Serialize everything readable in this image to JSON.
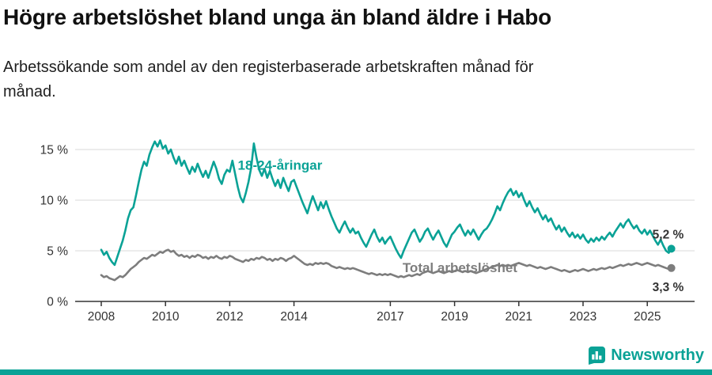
{
  "header": {
    "title": "Högre arbetslöshet bland unga än bland äldre i Habo",
    "subtitle": "Arbetssökande som andel av den registerbaserade arbetskraften månad för månad."
  },
  "branding": {
    "name": "Newsworthy",
    "color": "#0aa296"
  },
  "chart_data": {
    "type": "line",
    "title": "Högre arbetslöshet bland unga än bland äldre i Habo",
    "subtitle": "Arbetssökande som andel av den registerbaserade arbetskraften månad för månad.",
    "xlabel": "",
    "ylabel": "",
    "unit": "%",
    "grid": true,
    "xlim": [
      2008,
      2025.75
    ],
    "ylim": [
      0,
      16.5
    ],
    "x_ticks": [
      2008,
      2010,
      2012,
      2014,
      2017,
      2019,
      2021,
      2023,
      2025
    ],
    "y_ticks": [
      {
        "value": 0,
        "label": "0 %"
      },
      {
        "value": 5,
        "label": "5 %"
      },
      {
        "value": 10,
        "label": "10 %"
      },
      {
        "value": 15,
        "label": "15 %"
      }
    ],
    "series": [
      {
        "name": "18-24-åringar",
        "label": "18-24-åringar",
        "color": "#0aa296",
        "start_year": 2008,
        "frequency": "monthly",
        "label_anchor": {
          "year": 2012.25,
          "value": 13.0
        },
        "end_label": "5,2 %",
        "end_label_offset": [
          -24,
          -13
        ],
        "values": [
          5.1,
          4.6,
          4.9,
          4.3,
          3.9,
          3.6,
          4.4,
          5.2,
          6.0,
          7.0,
          8.2,
          9.0,
          9.3,
          10.5,
          11.8,
          13.0,
          13.8,
          13.4,
          14.5,
          15.2,
          15.8,
          15.3,
          15.9,
          15.1,
          15.4,
          14.6,
          15.0,
          14.2,
          13.6,
          14.3,
          13.4,
          13.9,
          13.2,
          12.6,
          13.3,
          12.8,
          13.6,
          12.9,
          12.3,
          12.9,
          12.2,
          13.0,
          13.8,
          13.1,
          12.1,
          11.6,
          12.5,
          13.0,
          12.8,
          13.9,
          12.6,
          11.3,
          10.3,
          9.8,
          10.7,
          11.8,
          13.2,
          15.6,
          14.2,
          13.0,
          12.4,
          13.1,
          12.2,
          12.9,
          12.1,
          11.4,
          12.0,
          11.2,
          12.2,
          11.5,
          10.9,
          11.8,
          12.0,
          11.3,
          10.6,
          9.9,
          9.3,
          8.7,
          9.6,
          10.4,
          9.7,
          9.0,
          9.8,
          9.2,
          9.9,
          9.1,
          8.4,
          7.8,
          7.2,
          6.8,
          7.4,
          7.9,
          7.3,
          6.8,
          7.2,
          6.7,
          6.9,
          6.3,
          5.8,
          5.4,
          6.0,
          6.6,
          7.1,
          6.4,
          5.9,
          6.3,
          5.7,
          6.1,
          6.4,
          5.8,
          5.2,
          4.7,
          4.3,
          5.0,
          5.6,
          6.2,
          6.8,
          7.1,
          6.5,
          5.9,
          6.3,
          6.9,
          7.2,
          6.6,
          6.1,
          6.6,
          7.0,
          6.4,
          5.8,
          5.4,
          6.0,
          6.6,
          6.9,
          7.3,
          7.6,
          7.0,
          6.5,
          7.0,
          6.6,
          7.1,
          6.6,
          6.1,
          6.6,
          7.0,
          7.2,
          7.6,
          8.1,
          8.7,
          9.4,
          9.0,
          9.7,
          10.3,
          10.8,
          11.1,
          10.5,
          10.9,
          10.3,
          10.7,
          10.0,
          9.4,
          9.9,
          9.3,
          8.8,
          9.2,
          8.6,
          8.1,
          8.5,
          7.9,
          8.2,
          7.6,
          7.1,
          7.5,
          6.9,
          7.3,
          6.8,
          6.4,
          6.8,
          6.3,
          6.6,
          6.2,
          6.6,
          6.1,
          5.8,
          6.2,
          5.9,
          6.3,
          6.0,
          6.4,
          6.1,
          6.5,
          6.8,
          6.4,
          6.9,
          7.3,
          7.7,
          7.3,
          7.8,
          8.1,
          7.6,
          7.2,
          7.5,
          7.0,
          6.7,
          7.1,
          6.6,
          7.0,
          6.5,
          6.0,
          5.6,
          6.1,
          5.5,
          5.0,
          4.8,
          5.2
        ]
      },
      {
        "name": "Total arbetslöshet",
        "label": "Total arbetslöshet",
        "color": "#7d7d7d",
        "start_year": 2008,
        "frequency": "monthly",
        "label_anchor": {
          "year": 2017.38,
          "value": 2.9
        },
        "end_label": "3,3 %",
        "end_label_offset": [
          -24,
          29
        ],
        "values": [
          2.6,
          2.4,
          2.5,
          2.3,
          2.2,
          2.1,
          2.3,
          2.5,
          2.4,
          2.6,
          2.9,
          3.2,
          3.4,
          3.6,
          3.9,
          4.1,
          4.3,
          4.2,
          4.4,
          4.6,
          4.5,
          4.7,
          4.9,
          4.8,
          5.0,
          5.1,
          4.9,
          5.0,
          4.7,
          4.5,
          4.6,
          4.4,
          4.5,
          4.3,
          4.5,
          4.4,
          4.6,
          4.5,
          4.3,
          4.4,
          4.2,
          4.4,
          4.3,
          4.5,
          4.3,
          4.2,
          4.4,
          4.3,
          4.5,
          4.4,
          4.2,
          4.1,
          4.0,
          3.9,
          4.1,
          4.0,
          4.2,
          4.1,
          4.3,
          4.2,
          4.4,
          4.3,
          4.1,
          4.2,
          4.0,
          4.2,
          4.1,
          4.3,
          4.2,
          4.0,
          4.2,
          4.3,
          4.5,
          4.3,
          4.1,
          3.9,
          3.7,
          3.6,
          3.7,
          3.6,
          3.8,
          3.7,
          3.8,
          3.7,
          3.8,
          3.7,
          3.5,
          3.4,
          3.3,
          3.4,
          3.3,
          3.2,
          3.3,
          3.2,
          3.3,
          3.2,
          3.1,
          3.0,
          2.9,
          2.8,
          2.7,
          2.8,
          2.7,
          2.6,
          2.7,
          2.6,
          2.7,
          2.6,
          2.7,
          2.6,
          2.5,
          2.4,
          2.5,
          2.4,
          2.5,
          2.6,
          2.5,
          2.6,
          2.7,
          2.6,
          2.8,
          2.9,
          3.0,
          2.9,
          2.8,
          2.9,
          3.0,
          2.9,
          2.8,
          2.9,
          3.0,
          2.9,
          3.0,
          3.1,
          3.0,
          2.9,
          3.0,
          2.9,
          3.0,
          2.9,
          2.8,
          2.9,
          3.0,
          3.1,
          3.2,
          3.3,
          3.4,
          3.5,
          3.6,
          3.5,
          3.6,
          3.5,
          3.6,
          3.5,
          3.6,
          3.7,
          3.8,
          3.7,
          3.6,
          3.5,
          3.6,
          3.5,
          3.4,
          3.3,
          3.4,
          3.3,
          3.2,
          3.3,
          3.4,
          3.3,
          3.2,
          3.1,
          3.0,
          3.1,
          3.0,
          2.9,
          3.0,
          3.1,
          3.0,
          3.1,
          3.2,
          3.1,
          3.0,
          3.1,
          3.2,
          3.1,
          3.2,
          3.3,
          3.2,
          3.3,
          3.4,
          3.3,
          3.4,
          3.5,
          3.6,
          3.5,
          3.6,
          3.7,
          3.6,
          3.7,
          3.8,
          3.7,
          3.6,
          3.7,
          3.8,
          3.7,
          3.6,
          3.5,
          3.6,
          3.5,
          3.4,
          3.3,
          3.2,
          3.3
        ]
      }
    ]
  }
}
